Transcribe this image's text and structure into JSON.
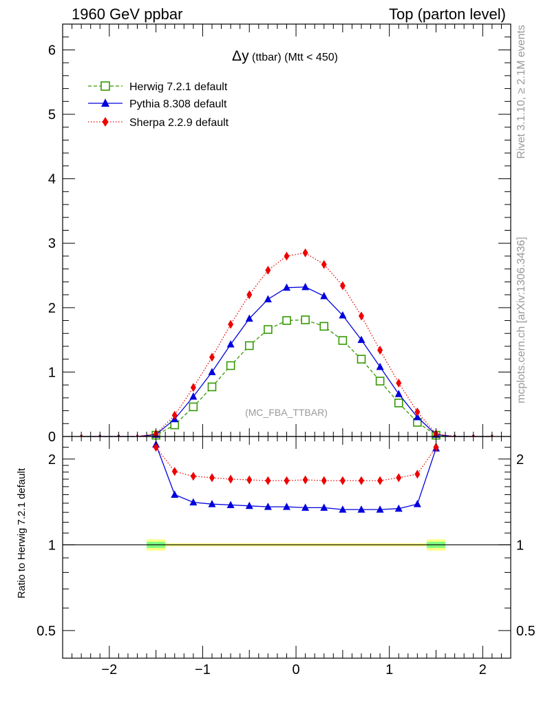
{
  "header": {
    "left": "1960 GeV ppbar",
    "right": "Top (parton level)"
  },
  "side_labels": {
    "rivet": "Rivet 3.1.10, ≥ 2.1M events",
    "mcplots": "mcplots.cern.ch [arXiv:1306.3436]"
  },
  "colors": {
    "herwig": "#339900",
    "pythia": "#0000dd",
    "sherpa": "#ee0000",
    "band_outer": "#ffff80",
    "band_inner": "#80ff80",
    "axis": "#000000",
    "watermark": "#999999"
  },
  "chart_data": [
    {
      "type": "line",
      "title_main": "Δy",
      "title_sub": " (ttbar) (Mtt < 450)",
      "watermark": "(MC_FBA_TTBAR)",
      "xlim": [
        -2.5,
        2.3
      ],
      "ylim": [
        0,
        6.4
      ],
      "yticks": [
        0,
        1,
        2,
        3,
        4,
        5,
        6
      ],
      "yticklabels": [
        "0",
        "1",
        "2",
        "3",
        "4",
        "5",
        "6"
      ],
      "x": [
        -2.3,
        -2.1,
        -1.9,
        -1.7,
        -1.5,
        -1.3,
        -1.1,
        -0.9,
        -0.7,
        -0.5,
        -0.3,
        -0.1,
        0.1,
        0.3,
        0.5,
        0.7,
        0.9,
        1.1,
        1.3,
        1.5,
        1.7,
        1.9,
        2.1
      ],
      "series": [
        {
          "name": "Herwig 7.2.1 default",
          "key": "herwig",
          "marker": "open-square",
          "dash": "dashed",
          "values": [
            0,
            0,
            0,
            0,
            0.02,
            0.18,
            0.46,
            0.77,
            1.1,
            1.41,
            1.66,
            1.8,
            1.81,
            1.71,
            1.49,
            1.2,
            0.86,
            0.52,
            0.22,
            0.02,
            0,
            0,
            0
          ]
        },
        {
          "name": "Pythia 8.308 default",
          "key": "pythia",
          "marker": "triangle",
          "dash": "solid",
          "values": [
            0,
            0,
            0,
            0,
            0.03,
            0.27,
            0.62,
            1.0,
            1.43,
            1.83,
            2.13,
            2.31,
            2.32,
            2.18,
            1.88,
            1.5,
            1.08,
            0.66,
            0.3,
            0.03,
            0,
            0,
            0
          ]
        },
        {
          "name": "Sherpa 2.2.9 default",
          "key": "sherpa",
          "marker": "diamond",
          "dash": "dotted",
          "values": [
            0,
            0,
            0,
            0,
            0.04,
            0.33,
            0.76,
            1.23,
            1.74,
            2.2,
            2.58,
            2.8,
            2.85,
            2.67,
            2.34,
            1.87,
            1.34,
            0.83,
            0.38,
            0.04,
            0,
            0,
            0
          ]
        }
      ]
    },
    {
      "type": "line",
      "ylabel": "Ratio to Herwig 7.2.1 default",
      "yscale": "log",
      "ylim": [
        0.4,
        2.4
      ],
      "yticks": [
        0.5,
        1,
        2
      ],
      "yticklabels": [
        "0.5",
        "1",
        "2"
      ],
      "xticks": [
        -2,
        -1,
        0,
        1,
        2
      ],
      "xticklabels": [
        "−2",
        "−1",
        "0",
        "1",
        "2"
      ],
      "x": [
        -1.5,
        -1.3,
        -1.1,
        -0.9,
        -0.7,
        -0.5,
        -0.3,
        -0.1,
        0.1,
        0.3,
        0.5,
        0.7,
        0.9,
        1.1,
        1.3,
        1.5
      ],
      "reference": 1.0,
      "band_x": [
        -1.6,
        1.6
      ],
      "band_edges": [
        {
          "x0": -1.6,
          "x1": -1.4,
          "outer": 0.045,
          "inner": 0.025
        },
        {
          "x0": 1.4,
          "x1": 1.6,
          "outer": 0.045,
          "inner": 0.025
        }
      ],
      "series": [
        {
          "key": "pythia",
          "marker": "triangle",
          "dash": "solid",
          "values": [
            2.25,
            1.5,
            1.41,
            1.39,
            1.38,
            1.37,
            1.36,
            1.36,
            1.35,
            1.35,
            1.33,
            1.33,
            1.33,
            1.34,
            1.39,
            2.18
          ]
        },
        {
          "key": "sherpa",
          "marker": "diamond",
          "dash": "dotted",
          "values": [
            2.2,
            1.81,
            1.74,
            1.72,
            1.7,
            1.69,
            1.68,
            1.68,
            1.69,
            1.68,
            1.68,
            1.68,
            1.68,
            1.72,
            1.77,
            2.2
          ]
        }
      ]
    }
  ]
}
